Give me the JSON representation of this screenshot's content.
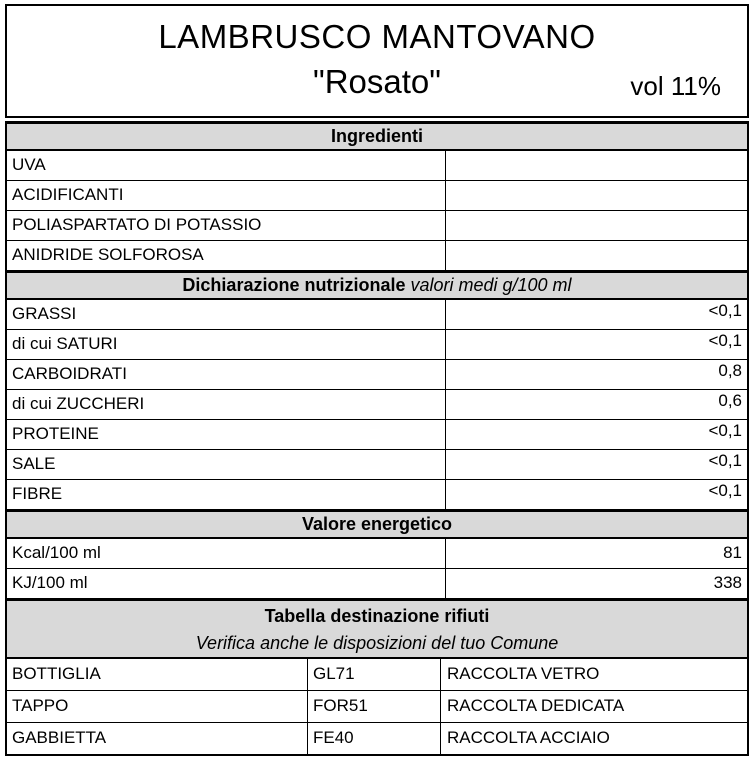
{
  "header": {
    "title": "LAMBRUSCO MANTOVANO",
    "subtitle": "\"Rosato\"",
    "alcohol": "vol 11%"
  },
  "colors": {
    "section_header_bg": "#d9d9d9",
    "border": "#000000",
    "text": "#000000"
  },
  "ingredients": {
    "section_title": "Ingredienti",
    "items": [
      {
        "label": "UVA",
        "value": ""
      },
      {
        "label": "ACIDIFICANTI",
        "value": ""
      },
      {
        "label": "POLIASPARTATO DI POTASSIO",
        "value": ""
      },
      {
        "label": "ANIDRIDE SOLFOROSA",
        "value": ""
      }
    ]
  },
  "nutrition": {
    "section_title_bold": "Dichiarazione nutrizionale",
    "section_title_italic": "valori medi g/100 ml",
    "rows": [
      {
        "label": "GRASSI",
        "value": "<0,1"
      },
      {
        "label": "di cui SATURI",
        "value": "<0,1"
      },
      {
        "label": "CARBOIDRATI",
        "value": "0,8"
      },
      {
        "label": "di cui ZUCCHERI",
        "value": "0,6"
      },
      {
        "label": "PROTEINE",
        "value": "<0,1"
      },
      {
        "label": "SALE",
        "value": "<0,1"
      },
      {
        "label": "FIBRE",
        "value": "<0,1"
      }
    ]
  },
  "energy": {
    "section_title": "Valore energetico",
    "rows": [
      {
        "label": "Kcal/100 ml",
        "value": "81"
      },
      {
        "label": "KJ/100 ml",
        "value": "338"
      }
    ]
  },
  "waste": {
    "section_title": "Tabella destinazione rifiuti",
    "section_subtitle": "Verifica anche le disposizioni del tuo Comune",
    "rows": [
      {
        "component": "BOTTIGLIA",
        "code": "GL71",
        "destination": "RACCOLTA VETRO"
      },
      {
        "component": "TAPPO",
        "code": "FOR51",
        "destination": "RACCOLTA DEDICATA"
      },
      {
        "component": "GABBIETTA",
        "code": "FE40",
        "destination": "RACCOLTA ACCIAIO"
      }
    ]
  }
}
